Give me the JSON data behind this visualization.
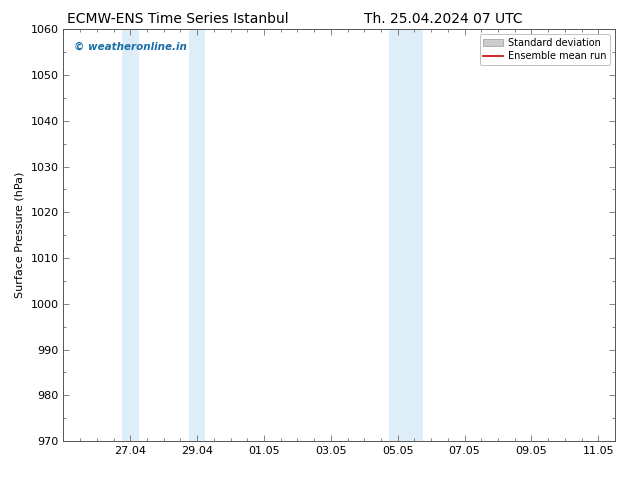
{
  "title_left": "ECMW-ENS Time Series Istanbul",
  "title_right": "Th. 25.04.2024 07 UTC",
  "ylabel": "Surface Pressure (hPa)",
  "ylim": [
    970,
    1060
  ],
  "yticks": [
    970,
    980,
    990,
    1000,
    1010,
    1020,
    1030,
    1040,
    1050,
    1060
  ],
  "xtick_labels": [
    "27.04",
    "29.04",
    "01.05",
    "03.05",
    "05.05",
    "07.05",
    "09.05",
    "11.05"
  ],
  "xtick_positions": [
    2,
    4,
    6,
    8,
    10,
    12,
    14,
    16
  ],
  "xlim": [
    0,
    16.5
  ],
  "shaded_regions": [
    {
      "xmin": 1.75,
      "xmax": 2.25,
      "color": "#ddeef8"
    },
    {
      "xmin": 3.75,
      "xmax": 4.25,
      "color": "#ddeef8"
    },
    {
      "xmin": 9.75,
      "xmax": 10.25,
      "color": "#ddeef8"
    },
    {
      "xmin": 10.25,
      "xmax": 10.75,
      "color": "#ddeef8"
    }
  ],
  "watermark_text": "© weatheronline.in",
  "watermark_color": "#1a6fa8",
  "legend_std_label": "Standard deviation",
  "legend_mean_label": "Ensemble mean run",
  "legend_std_color": "#cccccc",
  "legend_mean_color": "#cc0000",
  "background_color": "#ffffff",
  "plot_bg_color": "#ffffff",
  "title_fontsize": 10,
  "ylabel_fontsize": 8,
  "tick_fontsize": 8,
  "legend_fontsize": 7
}
